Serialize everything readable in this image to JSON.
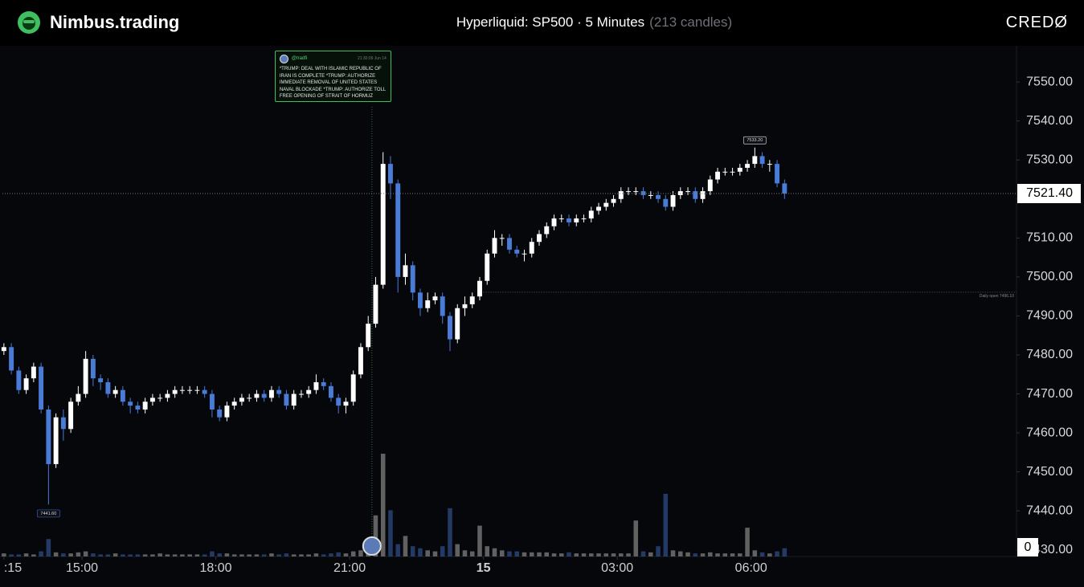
{
  "header": {
    "brand": "Nimbus.trading",
    "title": "Hyperliquid: SP500 · 5 Minutes",
    "candle_count": "(213 candles)",
    "logo": "CREDØ"
  },
  "chart_data": {
    "type": "candlestick",
    "x": [
      795,
      805,
      815,
      825,
      835,
      845,
      855,
      865,
      875,
      885,
      895,
      905,
      915,
      925,
      935,
      945,
      955,
      965,
      975,
      985,
      995,
      1005,
      1015,
      1025,
      1035,
      1045,
      1055,
      1065,
      1075,
      1085,
      1095,
      1105,
      1115,
      1125,
      1135,
      1145,
      1155,
      1165,
      1175,
      1185,
      1195,
      1205,
      1215,
      1225,
      1235,
      1245,
      1255,
      1265,
      1275,
      1285,
      1295,
      1305,
      1315,
      1325,
      1335,
      1345,
      1355,
      1365,
      1375,
      1385,
      1395,
      1405,
      1415,
      1425,
      1435,
      1445,
      1455,
      1465,
      1475,
      1485,
      1495,
      1505,
      1515,
      1525,
      1535,
      1545,
      1555,
      1565,
      1575,
      1585,
      1595,
      1605,
      1615,
      1625,
      1635,
      1645,
      1655,
      1665,
      1675,
      1685,
      1695,
      1705,
      1715,
      1725,
      1735,
      1745,
      1755,
      1765,
      1775,
      1785,
      1795,
      1805,
      1815,
      1825,
      1835,
      1845
    ],
    "open": [
      7481,
      7482,
      7476,
      7471,
      7474,
      7477,
      7466,
      7452,
      7464,
      7461,
      7468,
      7470,
      7479,
      7474,
      7473,
      7470,
      7471,
      7468,
      7467,
      7466,
      7468,
      7469,
      7469,
      7470,
      7471,
      7471,
      7471,
      7471,
      7470,
      7466,
      7464,
      7467,
      7468,
      7469,
      7469,
      7470,
      7469,
      7471,
      7470,
      7467,
      7470,
      7470,
      7471,
      7473,
      7472,
      7469,
      7467,
      7468,
      7475,
      7482,
      7488,
      7498,
      7529,
      7524,
      7500,
      7503,
      7496,
      7492,
      7494,
      7495,
      7490,
      7484,
      7492,
      7493,
      7495,
      7499,
      7506,
      7510,
      7510,
      7507,
      7506,
      7506,
      7509,
      7511,
      7513,
      7515,
      7515,
      7514,
      7515,
      7515,
      7517,
      7518,
      7519,
      7520,
      7522,
      7522,
      7522,
      7521,
      7521,
      7520,
      7518,
      7521,
      7522,
      7522,
      7520,
      7522,
      7525,
      7527,
      7527,
      7527,
      7528,
      7529,
      7531,
      7529,
      7529,
      7524
    ],
    "high": [
      7483,
      7483,
      7477,
      7475,
      7478,
      7478,
      7467,
      7465,
      7466,
      7469,
      7472,
      7481,
      7480,
      7475,
      7474,
      7472,
      7472,
      7469,
      7468,
      7469,
      7470,
      7470,
      7471,
      7472,
      7472,
      7472,
      7472,
      7472,
      7471,
      7467,
      7468,
      7469,
      7470,
      7470,
      7471,
      7471,
      7472,
      7472,
      7471,
      7471,
      7471,
      7472,
      7475,
      7474,
      7473,
      7470,
      7469,
      7476,
      7483,
      7490,
      7500,
      7532,
      7531,
      7525,
      7506,
      7504,
      7497,
      7496,
      7496,
      7496,
      7491,
      7493,
      7495,
      7496,
      7500,
      7507,
      7512,
      7511,
      7511,
      7508,
      7507,
      7510,
      7512,
      7514,
      7516,
      7516,
      7516,
      7516,
      7516,
      7518,
      7519,
      7520,
      7521,
      7523,
      7523,
      7523,
      7523,
      7522,
      7522,
      7521,
      7522,
      7523,
      7523,
      7523,
      7523,
      7526,
      7528,
      7528,
      7528,
      7529,
      7530,
      7533.2,
      7532,
      7530,
      7530,
      7525
    ],
    "low": [
      7480,
      7475,
      7470,
      7470,
      7473,
      7465,
      7441.6,
      7451,
      7458,
      7460,
      7467,
      7469,
      7472,
      7471,
      7469,
      7469,
      7467,
      7465,
      7465,
      7465,
      7467,
      7468,
      7468,
      7469,
      7470,
      7470,
      7470,
      7469,
      7464,
      7463,
      7463,
      7466,
      7467,
      7468,
      7468,
      7468,
      7468,
      7469,
      7466,
      7466,
      7469,
      7469,
      7470,
      7471,
      7468,
      7465,
      7465,
      7467,
      7474,
      7481,
      7487,
      7497,
      7520,
      7496,
      7498,
      7494,
      7490,
      7491,
      7493,
      7488,
      7481,
      7483,
      7490,
      7492,
      7494,
      7498,
      7505,
      7508,
      7506,
      7505,
      7504,
      7505,
      7508,
      7510,
      7512,
      7514,
      7513,
      7513,
      7514,
      7514,
      7516,
      7517,
      7518,
      7519,
      7521,
      7521,
      7520,
      7520,
      7519,
      7517,
      7517,
      7520,
      7521,
      7519,
      7519,
      7521,
      7524,
      7526,
      7526,
      7526,
      7527,
      7528,
      7528,
      7527,
      7523,
      7520
    ],
    "close": [
      7482,
      7476,
      7471,
      7474,
      7477,
      7466,
      7452,
      7464,
      7461,
      7468,
      7470,
      7479,
      7474,
      7473,
      7470,
      7471,
      7468,
      7467,
      7466,
      7468,
      7469,
      7469,
      7470,
      7471,
      7471,
      7471,
      7471,
      7470,
      7466,
      7464,
      7467,
      7468,
      7469,
      7469,
      7470,
      7469,
      7471,
      7470,
      7467,
      7470,
      7470,
      7471,
      7473,
      7472,
      7469,
      7467,
      7468,
      7475,
      7482,
      7488,
      7498,
      7529,
      7524,
      7500,
      7503,
      7496,
      7492,
      7494,
      7495,
      7490,
      7484,
      7492,
      7493,
      7495,
      7499,
      7506,
      7510,
      7510,
      7507,
      7506,
      7506,
      7509,
      7511,
      7513,
      7515,
      7515,
      7514,
      7515,
      7515,
      7517,
      7518,
      7519,
      7520,
      7522,
      7522,
      7522,
      7521,
      7521,
      7520,
      7518,
      7521,
      7522,
      7522,
      7520,
      7522,
      7525,
      7527,
      7527,
      7527,
      7528,
      7529,
      7531,
      7529,
      7529,
      7524,
      7521.4
    ],
    "volume": [
      3,
      2,
      2,
      3,
      2,
      5,
      17,
      4,
      3,
      3,
      4,
      5,
      3,
      2,
      2,
      3,
      2,
      2,
      2,
      2,
      2,
      3,
      2,
      2,
      2,
      2,
      2,
      2,
      5,
      3,
      3,
      2,
      2,
      2,
      2,
      2,
      3,
      2,
      3,
      2,
      2,
      2,
      3,
      2,
      3,
      4,
      3,
      5,
      6,
      9,
      40,
      100,
      45,
      12,
      20,
      10,
      8,
      6,
      5,
      10,
      47,
      12,
      6,
      5,
      30,
      10,
      8,
      6,
      5,
      5,
      4,
      4,
      4,
      4,
      3,
      3,
      4,
      3,
      3,
      3,
      3,
      3,
      3,
      3,
      3,
      35,
      5,
      4,
      10,
      61,
      6,
      5,
      4,
      3,
      3,
      4,
      3,
      3,
      3,
      3,
      28,
      6,
      4,
      3,
      5,
      8
    ],
    "up_color": "#ffffff",
    "down_color": "#4a7bd6",
    "xlim": [
      793,
      2157
    ],
    "xticks": [
      {
        "value": 795,
        "label": ":15"
      },
      {
        "value": 900,
        "label": "15:00"
      },
      {
        "value": 1080,
        "label": "18:00"
      },
      {
        "value": 1260,
        "label": "21:00"
      },
      {
        "value": 1440,
        "label": "15"
      },
      {
        "value": 1620,
        "label": "03:00"
      },
      {
        "value": 1800,
        "label": "06:00"
      }
    ],
    "ylim": [
      7428.3,
      7559.3
    ],
    "yticks": [
      {
        "value": 7430,
        "label": "7430.00"
      },
      {
        "value": 7440,
        "label": "7440.00"
      },
      {
        "value": 7450,
        "label": "7450.00"
      },
      {
        "value": 7460,
        "label": "7460.00"
      },
      {
        "value": 7470,
        "label": "7470.00"
      },
      {
        "value": 7480,
        "label": "7480.00"
      },
      {
        "value": 7490,
        "label": "7490.00"
      },
      {
        "value": 7500,
        "label": "7500.00"
      },
      {
        "value": 7510,
        "label": "7510.00"
      },
      {
        "value": 7520,
        "label": "7520.00"
      },
      {
        "value": 7530,
        "label": "7530.00"
      },
      {
        "value": 7540,
        "label": "7540.00"
      },
      {
        "value": 7550,
        "label": "7550.00"
      }
    ],
    "y2lim": [
      0,
      497
    ],
    "y2ticks": [
      0
    ],
    "last_price": {
      "value": 7521.4,
      "label": "7521.40"
    },
    "daily_open": {
      "value": 7496.1,
      "label": "Daily open 7496.10",
      "from": 1440
    },
    "high_marker": {
      "value": 7533.2,
      "label": "7533.20",
      "x": 1805
    },
    "low_marker": {
      "value": 7441.6,
      "label": "7441.60",
      "x": 855
    },
    "annotations": [
      {
        "x": 1290,
        "handle": "@tradfi",
        "time": "21:30:09 Jun 14",
        "text": "*TRUMP: DEAL WITH ISLAMIC REPUBLIC OF IRAN IS COMPLETE  *TRUMP: AUTHORIZE IMMEDIATE REMOVAL OF UNITED STATES NAVAL BLOCKADE  *TRUMP: AUTHORIZE TOLL FREE OPENING OF STRAIT OF HORMUZ"
      }
    ]
  }
}
